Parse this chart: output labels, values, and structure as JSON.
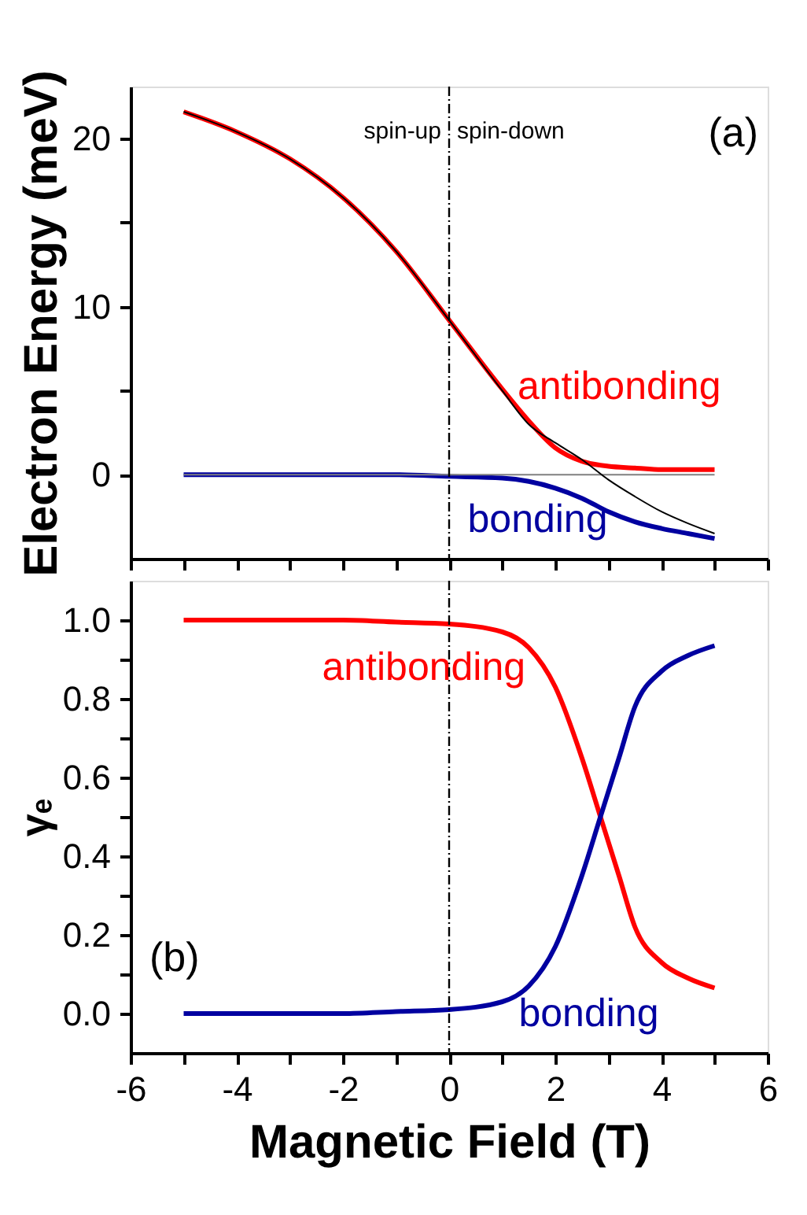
{
  "chart_data": [
    {
      "type": "line",
      "ylabel": "Electron Energy (meV)",
      "xlim": [
        -6,
        6
      ],
      "ylim": [
        -5,
        23.1
      ],
      "xticks": [
        -6,
        {
          "value": -5,
          "label": null
        },
        -4,
        {
          "value": -3,
          "label": null
        },
        -2,
        {
          "value": -1,
          "label": null
        },
        0,
        {
          "value": 1,
          "label": null
        },
        2,
        {
          "value": 3,
          "label": null
        },
        4,
        {
          "value": 5,
          "label": null
        },
        6
      ],
      "yticks": [
        0,
        {
          "value": 5,
          "label": null
        },
        10,
        {
          "value": 15,
          "label": null
        },
        20
      ],
      "tick_labels": "y",
      "grid": false,
      "legend": false,
      "marker": "none",
      "line_style": "solid",
      "ref_lines": [
        {
          "axis": "x",
          "value": 0,
          "color": "#000000",
          "line_style": "dashed"
        }
      ],
      "annotations": [
        "spin-up",
        "spin-down",
        "(a)"
      ],
      "series": [
        {
          "name": "antibonding",
          "color": "#ff0000",
          "x": [
            -5,
            -4,
            -3,
            -2,
            -1,
            0,
            1,
            1.5,
            2,
            2.5,
            3,
            3.5,
            4,
            4.5,
            5
          ],
          "values": [
            21.6,
            20.4,
            18.8,
            16.5,
            13.3,
            9.2,
            5.1,
            3.2,
            1.6,
            0.8,
            0.5,
            0.4,
            0.3,
            0.3,
            0.3
          ]
        },
        {
          "name": "bonding",
          "color": "#0000a0",
          "x": [
            -5,
            -4,
            -3,
            -2,
            -1,
            0,
            1,
            1.5,
            2,
            2.5,
            3,
            3.5,
            4,
            4.5,
            5
          ],
          "values": [
            0,
            0,
            0,
            0,
            0,
            -0.1,
            -0.2,
            -0.4,
            -0.8,
            -1.4,
            -2.2,
            -2.8,
            -3.2,
            -3.5,
            -3.8
          ]
        },
        {
          "color": "#808080",
          "x": [
            -5,
            5
          ],
          "values": [
            0,
            0
          ]
        },
        {
          "color": "#000000",
          "x": [
            -5,
            -4,
            -3,
            -2,
            -1,
            0,
            1,
            1.5,
            2,
            2.5,
            3,
            3.5,
            4,
            4.5,
            5
          ],
          "values": [
            21.6,
            20.4,
            18.8,
            16.5,
            13.3,
            9.2,
            5.0,
            3.0,
            1.9,
            0.9,
            -0.3,
            -1.3,
            -2.2,
            -2.9,
            -3.5
          ]
        }
      ]
    },
    {
      "type": "line",
      "xlabel": "Magnetic Field (T)",
      "ylabel": "γₑ",
      "xlim": [
        -6,
        6
      ],
      "ylim": [
        -0.1,
        1.1
      ],
      "xticks": [
        -6,
        {
          "value": -5,
          "label": null
        },
        -4,
        {
          "value": -3,
          "label": null
        },
        -2,
        {
          "value": -1,
          "label": null
        },
        0,
        {
          "value": 1,
          "label": null
        },
        2,
        {
          "value": 3,
          "label": null
        },
        4,
        {
          "value": 5,
          "label": null
        },
        6
      ],
      "yticks": [
        {
          "value": 0,
          "label": "0.0"
        },
        {
          "value": 0.1,
          "label": null
        },
        0.2,
        {
          "value": 0.3,
          "label": null
        },
        0.4,
        {
          "value": 0.5,
          "label": null
        },
        0.6,
        {
          "value": 0.7,
          "label": null
        },
        0.8,
        {
          "value": 0.9,
          "label": null
        },
        {
          "value": 1,
          "label": "1.0"
        }
      ],
      "grid": false,
      "legend": false,
      "marker": "none",
      "line_style": "solid",
      "ref_lines": [
        {
          "axis": "x",
          "value": 0,
          "color": "#000000",
          "line_style": "dashed"
        }
      ],
      "annotations": [
        "(b)"
      ],
      "series": [
        {
          "name": "antibonding",
          "color": "#ff0000",
          "x": [
            -5,
            -4,
            -3,
            -2,
            -1,
            0,
            1,
            1.5,
            2,
            2.5,
            2.85,
            3.2,
            3.5,
            4,
            4.5,
            5
          ],
          "values": [
            1.0,
            1.0,
            1.0,
            1.0,
            0.995,
            0.99,
            0.97,
            0.93,
            0.83,
            0.65,
            0.5,
            0.35,
            0.22,
            0.13,
            0.09,
            0.065
          ]
        },
        {
          "name": "bonding",
          "color": "#0000a0",
          "x": [
            -5,
            -4,
            -3,
            -2,
            -1,
            0,
            1,
            1.5,
            2,
            2.5,
            2.85,
            3.2,
            3.5,
            4,
            4.5,
            5
          ],
          "values": [
            0.0,
            0.0,
            0.0,
            0.0,
            0.005,
            0.01,
            0.03,
            0.07,
            0.17,
            0.35,
            0.5,
            0.65,
            0.78,
            0.87,
            0.91,
            0.935
          ]
        }
      ]
    }
  ]
}
